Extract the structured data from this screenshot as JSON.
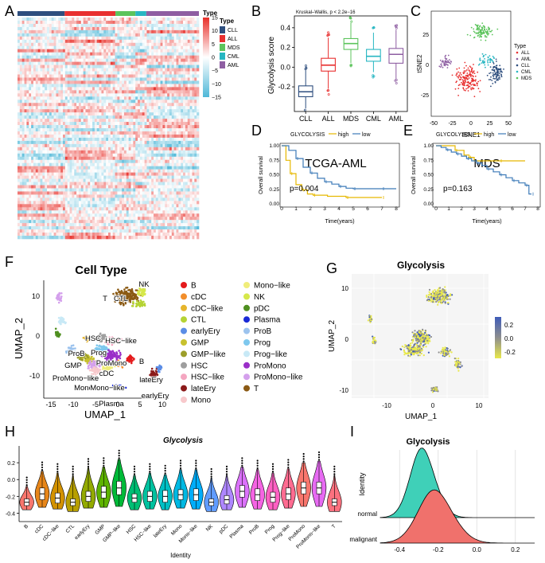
{
  "panel_letters": [
    "A",
    "B",
    "C",
    "D",
    "E",
    "F",
    "G",
    "H",
    "I"
  ],
  "chart_data": [
    {
      "panel": "A",
      "type": "heatmap",
      "legend_title": "Type",
      "groups": [
        "CLL",
        "ALL",
        "MDS",
        "CML",
        "AML"
      ],
      "group_colors": [
        "#2e4e7e",
        "#e83030",
        "#5cc45c",
        "#27b6c2",
        "#8e5ea2"
      ],
      "color_scale_ticks": [
        "15",
        "10",
        "5",
        "0",
        "−5",
        "−10",
        "−15"
      ]
    },
    {
      "panel": "B",
      "type": "box",
      "annotation": "Kruskal–Wallis, p < 2.2e−16",
      "ylabel": "Glycolysis score",
      "categories": [
        "CLL",
        "ALL",
        "MDS",
        "CML",
        "AML"
      ],
      "colors": [
        "#2e4e7e",
        "#e83030",
        "#5cc45c",
        "#27b6c2",
        "#8e5ea2"
      ],
      "ylim": [
        -0.45,
        0.52
      ],
      "yticks": [
        -0.2,
        0.0,
        0.2,
        0.4
      ],
      "ytick_labels": [
        "-0.2",
        "0.0",
        "0.2",
        "0.4"
      ],
      "box_stats": [
        {
          "min": -0.42,
          "q1": -0.3,
          "median": -0.25,
          "q3": -0.19,
          "max": -0.03
        },
        {
          "min": -0.22,
          "q1": -0.04,
          "median": 0.02,
          "q3": 0.09,
          "max": 0.3
        },
        {
          "min": 0.04,
          "q1": 0.18,
          "median": 0.24,
          "q3": 0.29,
          "max": 0.45
        },
        {
          "min": -0.05,
          "q1": 0.06,
          "median": 0.11,
          "q3": 0.18,
          "max": 0.35
        },
        {
          "min": -0.12,
          "q1": 0.04,
          "median": 0.13,
          "q3": 0.19,
          "max": 0.38
        }
      ]
    },
    {
      "panel": "C",
      "type": "scatter",
      "xlabel": "tSNE1",
      "ylabel": "tSNE2",
      "xticks": [
        "-50",
        "-25",
        "0",
        "25",
        "50"
      ],
      "yticks": [
        "25",
        "0",
        "-25"
      ],
      "legend_title": "Type",
      "legend_labels": [
        "ALL",
        "AML",
        "CLL",
        "CML",
        "MDS"
      ],
      "legend_colors": [
        "#e83030",
        "#8e5ea2",
        "#2e4e7e",
        "#27b6c2",
        "#5cc45c"
      ]
    },
    {
      "panel": "D",
      "type": "line",
      "title": "TCGA-AML",
      "legend_label": "GLYCOLYSIS",
      "series": [
        {
          "name": "high",
          "color": "#e6b800",
          "x": [
            0,
            0.3,
            0.6,
            1.0,
            1.4,
            1.8,
            2.2,
            3.2,
            4.5,
            6.5,
            7.0
          ],
          "y": [
            1,
            0.75,
            0.52,
            0.33,
            0.24,
            0.17,
            0.15,
            0.13,
            0.11,
            0.11,
            0.11
          ]
        },
        {
          "name": "low",
          "color": "#3c7ab8",
          "x": [
            0,
            0.5,
            1.0,
            1.5,
            2.0,
            2.5,
            3.0,
            3.5,
            4.0,
            4.5,
            5.0,
            6.0,
            7.0,
            8.0
          ],
          "y": [
            1,
            0.92,
            0.78,
            0.63,
            0.53,
            0.44,
            0.38,
            0.34,
            0.3,
            0.27,
            0.26,
            0.26,
            0.26,
            0.26
          ]
        }
      ],
      "pvalue": "p=0.004",
      "xlabel": "Time(years)",
      "ylabel": "Overall survival",
      "xticks": [
        "0",
        "1",
        "2",
        "3",
        "4",
        "5",
        "6",
        "7",
        "8"
      ],
      "yticks": [
        "0.00",
        "0.25",
        "0.50",
        "0.75",
        "1.00"
      ]
    },
    {
      "panel": "E",
      "type": "line",
      "title": "MDS",
      "legend_label": "GLYCOLYSIS",
      "series": [
        {
          "name": "high",
          "color": "#e6b800",
          "x": [
            0,
            1.0,
            1.5,
            2.2,
            2.6,
            3.0,
            5.0,
            7.0
          ],
          "y": [
            1,
            1,
            0.92,
            0.84,
            0.8,
            0.74,
            0.74,
            0.74
          ]
        },
        {
          "name": "low",
          "color": "#3c7ab8",
          "x": [
            0,
            0.4,
            0.8,
            1.2,
            1.6,
            2.0,
            2.4,
            2.8,
            3.2,
            3.6,
            4.0,
            4.5,
            5.0,
            5.5,
            6.0,
            6.5,
            7.0,
            7.3,
            7.5
          ],
          "y": [
            1,
            0.97,
            0.93,
            0.89,
            0.86,
            0.82,
            0.78,
            0.74,
            0.7,
            0.66,
            0.6,
            0.55,
            0.5,
            0.45,
            0.4,
            0.36,
            0.32,
            0.17,
            0.17
          ]
        }
      ],
      "pvalue": "p=0.163",
      "xlabel": "Time(years)",
      "ylabel": "Overall survival",
      "xticks": [
        "0",
        "1",
        "2",
        "3",
        "4",
        "5",
        "6",
        "7",
        "8"
      ],
      "yticks": [
        "0.00",
        "0.25",
        "0.50",
        "0.75",
        "1.00"
      ]
    },
    {
      "panel": "F",
      "type": "scatter",
      "title": "Cell Type",
      "xlabel": "UMAP_1",
      "ylabel": "UMAP_2",
      "xticks": [
        "-15",
        "-10",
        "-5",
        "0",
        "5",
        "10"
      ],
      "yticks": [
        "10",
        "0",
        "-10"
      ],
      "cluster_labels": [
        "NK",
        "T",
        "CTL",
        "HSC",
        "HSC−like",
        "ProB",
        "Prog",
        "GMP",
        "ProMono",
        "B",
        "cDC",
        "ProMono−like",
        "Mono",
        "Mono−like",
        "lateEry",
        "Plasma",
        "earlyEry"
      ],
      "legend": [
        {
          "label": "B",
          "color": "#e41a1c"
        },
        {
          "label": "cDC",
          "color": "#f28e2b"
        },
        {
          "label": "cDC−like",
          "color": "#e6b52c"
        },
        {
          "label": "CTL",
          "color": "#b5d334"
        },
        {
          "label": "earlyEry",
          "color": "#5b8de6"
        },
        {
          "label": "GMP",
          "color": "#c7c12e"
        },
        {
          "label": "GMP−like",
          "color": "#9c9e2a"
        },
        {
          "label": "HSC",
          "color": "#9e9e9e"
        },
        {
          "label": "HSC−like",
          "color": "#f4a6c0"
        },
        {
          "label": "lateEry",
          "color": "#8b1a1a"
        },
        {
          "label": "Mono",
          "color": "#f8c9cc"
        },
        {
          "label": "Mono−like",
          "color": "#f0ed7a"
        },
        {
          "label": "NK",
          "color": "#d6e84a"
        },
        {
          "label": "pDC",
          "color": "#4f8f20"
        },
        {
          "label": "Plasma",
          "color": "#1a2ad6"
        },
        {
          "label": "ProB",
          "color": "#9cc3ee"
        },
        {
          "label": "Prog",
          "color": "#7ec8ee"
        },
        {
          "label": "Prog−like",
          "color": "#c8e9f6"
        },
        {
          "label": "ProMono",
          "color": "#9a2fc8"
        },
        {
          "label": "ProMono−like",
          "color": "#d4a0ec"
        },
        {
          "label": "T",
          "color": "#8b5a14"
        }
      ]
    },
    {
      "panel": "G",
      "type": "scatter",
      "title": "Glycolysis",
      "xlabel": "UMAP_1",
      "ylabel": "UMAP_2",
      "xticks": [
        "-10",
        "0",
        "10"
      ],
      "yticks": [
        "10",
        "0",
        "-10"
      ],
      "colorbar_ticks": [
        "0.2",
        "0.0",
        "-0.2"
      ],
      "colorbar_colors": [
        "#3f5cb8",
        "#8e8e8e",
        "#e8e84a"
      ]
    },
    {
      "panel": "H",
      "type": "violin",
      "title": "Glycolysis",
      "xlabel": "Identity",
      "ylim": [
        -0.5,
        0.4
      ],
      "yticks": [
        -0.4,
        -0.2,
        0.0,
        0.2
      ],
      "ytick_labels": [
        "-0.4",
        "-0.2",
        "0.0",
        "0.2"
      ],
      "categories": [
        "B",
        "cDC",
        "cDC−like",
        "CTL",
        "earlyEry",
        "GMP",
        "GMP−like",
        "HSC",
        "HSC−like",
        "lateEry",
        "Mono",
        "Mono−like",
        "NK",
        "pDC",
        "Plasma",
        "ProB",
        "Prog",
        "Prog−like",
        "ProMono",
        "ProMono−like",
        "T"
      ],
      "colors": [
        "#f8766d",
        "#e7861a",
        "#d39200",
        "#b79f00",
        "#93aa00",
        "#5eb300",
        "#00ba38",
        "#00bf74",
        "#00c19f",
        "#00bfc4",
        "#00b9e3",
        "#00adfa",
        "#619cff",
        "#ae87ff",
        "#db72fb",
        "#f564e3",
        "#ff61c3",
        "#ff6c91",
        "#f8766d",
        "#e76bf3",
        "#fc717f"
      ],
      "medians": [
        -0.27,
        -0.17,
        -0.22,
        -0.27,
        -0.2,
        -0.15,
        -0.1,
        -0.22,
        -0.2,
        -0.2,
        -0.18,
        -0.18,
        -0.27,
        -0.24,
        -0.14,
        -0.18,
        -0.21,
        -0.17,
        -0.1,
        -0.1,
        -0.27
      ],
      "q1": [
        -0.31,
        -0.24,
        -0.28,
        -0.31,
        -0.26,
        -0.22,
        -0.18,
        -0.27,
        -0.26,
        -0.27,
        -0.24,
        -0.25,
        -0.31,
        -0.29,
        -0.21,
        -0.25,
        -0.27,
        -0.24,
        -0.17,
        -0.17,
        -0.31
      ],
      "q3": [
        -0.23,
        -0.1,
        -0.16,
        -0.23,
        -0.14,
        -0.08,
        -0.02,
        -0.17,
        -0.14,
        -0.13,
        -0.12,
        -0.11,
        -0.23,
        -0.19,
        -0.07,
        -0.11,
        -0.15,
        -0.1,
        -0.03,
        -0.03,
        -0.23
      ],
      "max": [
        -0.08,
        0.1,
        0.08,
        0.05,
        0.14,
        0.15,
        0.24,
        0.05,
        0.08,
        0.06,
        0.12,
        0.12,
        0.02,
        0.05,
        0.15,
        0.12,
        0.08,
        0.13,
        0.2,
        0.22,
        0.05
      ],
      "min": [
        -0.36,
        -0.33,
        -0.35,
        -0.38,
        -0.34,
        -0.33,
        -0.32,
        -0.36,
        -0.35,
        -0.36,
        -0.34,
        -0.35,
        -0.38,
        -0.36,
        -0.33,
        -0.35,
        -0.36,
        -0.34,
        -0.32,
        -0.32,
        -0.38
      ]
    },
    {
      "panel": "I",
      "type": "area",
      "title": "Glycolysis",
      "ylabel": "Identity",
      "xticks": [
        -0.4,
        -0.2,
        0.0,
        0.2
      ],
      "xtick_labels": [
        "-0.4",
        "-0.2",
        "0.0",
        "0.2"
      ],
      "series": [
        {
          "name": "normal",
          "color": "#3fd0b8",
          "peak": -0.27,
          "sd": 0.065
        },
        {
          "name": "malignant",
          "color": "#f0716c",
          "peak": -0.2,
          "sd": 0.09
        }
      ]
    }
  ]
}
